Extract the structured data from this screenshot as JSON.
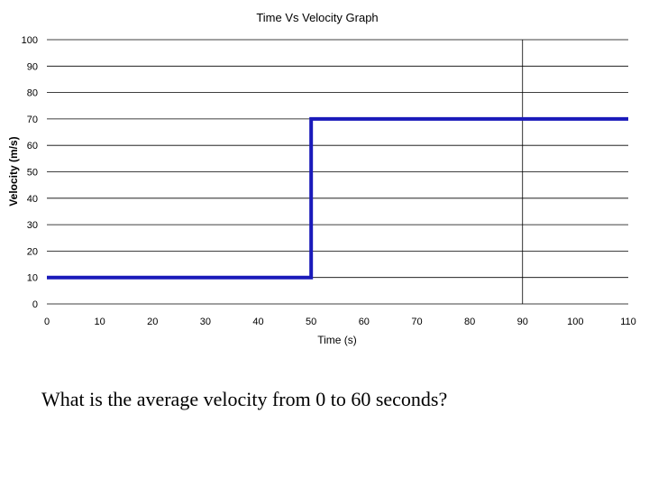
{
  "chart_data": {
    "type": "line",
    "title": "Time Vs Velocity Graph",
    "xlabel": "Time (s)",
    "ylabel": "Velocity (m/s)",
    "xlim": [
      0,
      110
    ],
    "ylim": [
      0,
      100
    ],
    "x_ticks": [
      0,
      10,
      20,
      30,
      40,
      50,
      60,
      70,
      80,
      90,
      100,
      110
    ],
    "y_ticks": [
      0,
      10,
      20,
      30,
      40,
      50,
      60,
      70,
      80,
      90,
      100
    ],
    "grid": "horizontal",
    "reference_line_x": 90,
    "series": [
      {
        "color": "#1a1aba",
        "points": [
          {
            "x": 0,
            "y": 10
          },
          {
            "x": 50,
            "y": 10
          },
          {
            "x": 50,
            "y": 70
          },
          {
            "x": 110,
            "y": 70
          }
        ]
      }
    ]
  },
  "question": "What is the average velocity from 0 to 60 seconds?"
}
